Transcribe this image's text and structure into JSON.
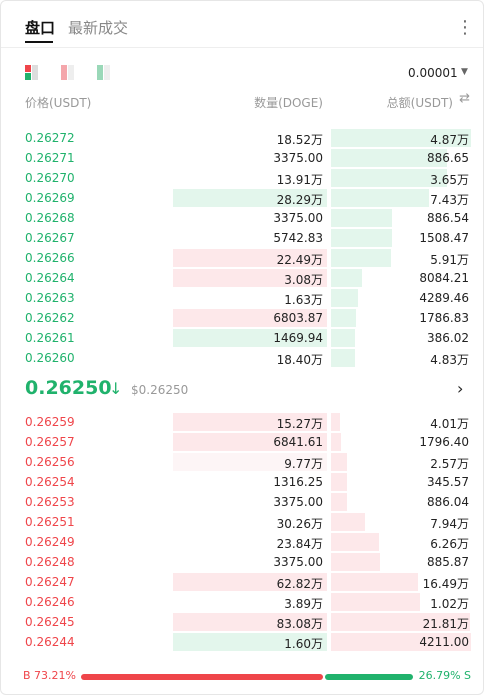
{
  "tabs": [
    "盘口",
    "最新成交"
  ],
  "precision": "0.00001",
  "headers": [
    "价格(USDT)",
    "数量(DOGE)",
    "总额(USDT)"
  ],
  "asks": [
    {
      "price": "0.26272",
      "amount": "18.52万",
      "total": "4.87万"
    },
    {
      "price": "0.26271",
      "amount": "3375.00",
      "total": "886.65"
    },
    {
      "price": "0.26270",
      "amount": "13.91万",
      "total": "3.65万"
    },
    {
      "price": "0.26269",
      "amount": "28.29万",
      "total": "7.43万"
    },
    {
      "price": "0.26268",
      "amount": "3375.00",
      "total": "886.54"
    },
    {
      "price": "0.26267",
      "amount": "5742.83",
      "total": "1508.47"
    },
    {
      "price": "0.26266",
      "amount": "22.49万",
      "total": "5.91万"
    },
    {
      "price": "0.26264",
      "amount": "3.08万",
      "total": "8084.21"
    },
    {
      "price": "0.26263",
      "amount": "1.63万",
      "total": "4289.46"
    },
    {
      "price": "0.26262",
      "amount": "6803.87",
      "total": "1786.83"
    },
    {
      "price": "0.26261",
      "amount": "1469.94",
      "total": "386.02"
    },
    {
      "price": "0.26260",
      "amount": "18.40万",
      "total": "4.83万"
    }
  ],
  "mid": {
    "price": "0.26250",
    "usd": "$0.26250"
  },
  "bids": [
    {
      "price": "0.26259",
      "amount": "15.27万",
      "total": "4.01万"
    },
    {
      "price": "0.26257",
      "amount": "6841.61",
      "total": "1796.40"
    },
    {
      "price": "0.26256",
      "amount": "9.77万",
      "total": "2.57万"
    },
    {
      "price": "0.26254",
      "amount": "1316.25",
      "total": "345.57"
    },
    {
      "price": "0.26253",
      "amount": "3375.00",
      "total": "886.04"
    },
    {
      "price": "0.26251",
      "amount": "30.26万",
      "total": "7.94万"
    },
    {
      "price": "0.26249",
      "amount": "23.84万",
      "total": "6.26万"
    },
    {
      "price": "0.26248",
      "amount": "3375.00",
      "total": "885.87"
    },
    {
      "price": "0.26247",
      "amount": "62.82万",
      "total": "16.49万"
    },
    {
      "price": "0.26246",
      "amount": "3.89万",
      "total": "1.02万"
    },
    {
      "price": "0.26245",
      "amount": "83.08万",
      "total": "21.81万"
    },
    {
      "price": "0.26244",
      "amount": "1.60万",
      "total": "4211.00"
    }
  ],
  "ratio": {
    "buy": {
      "value": 73.21,
      "label": "B 73.21%"
    },
    "sell": {
      "value": 26.79,
      "label": "26.79% S"
    }
  }
}
